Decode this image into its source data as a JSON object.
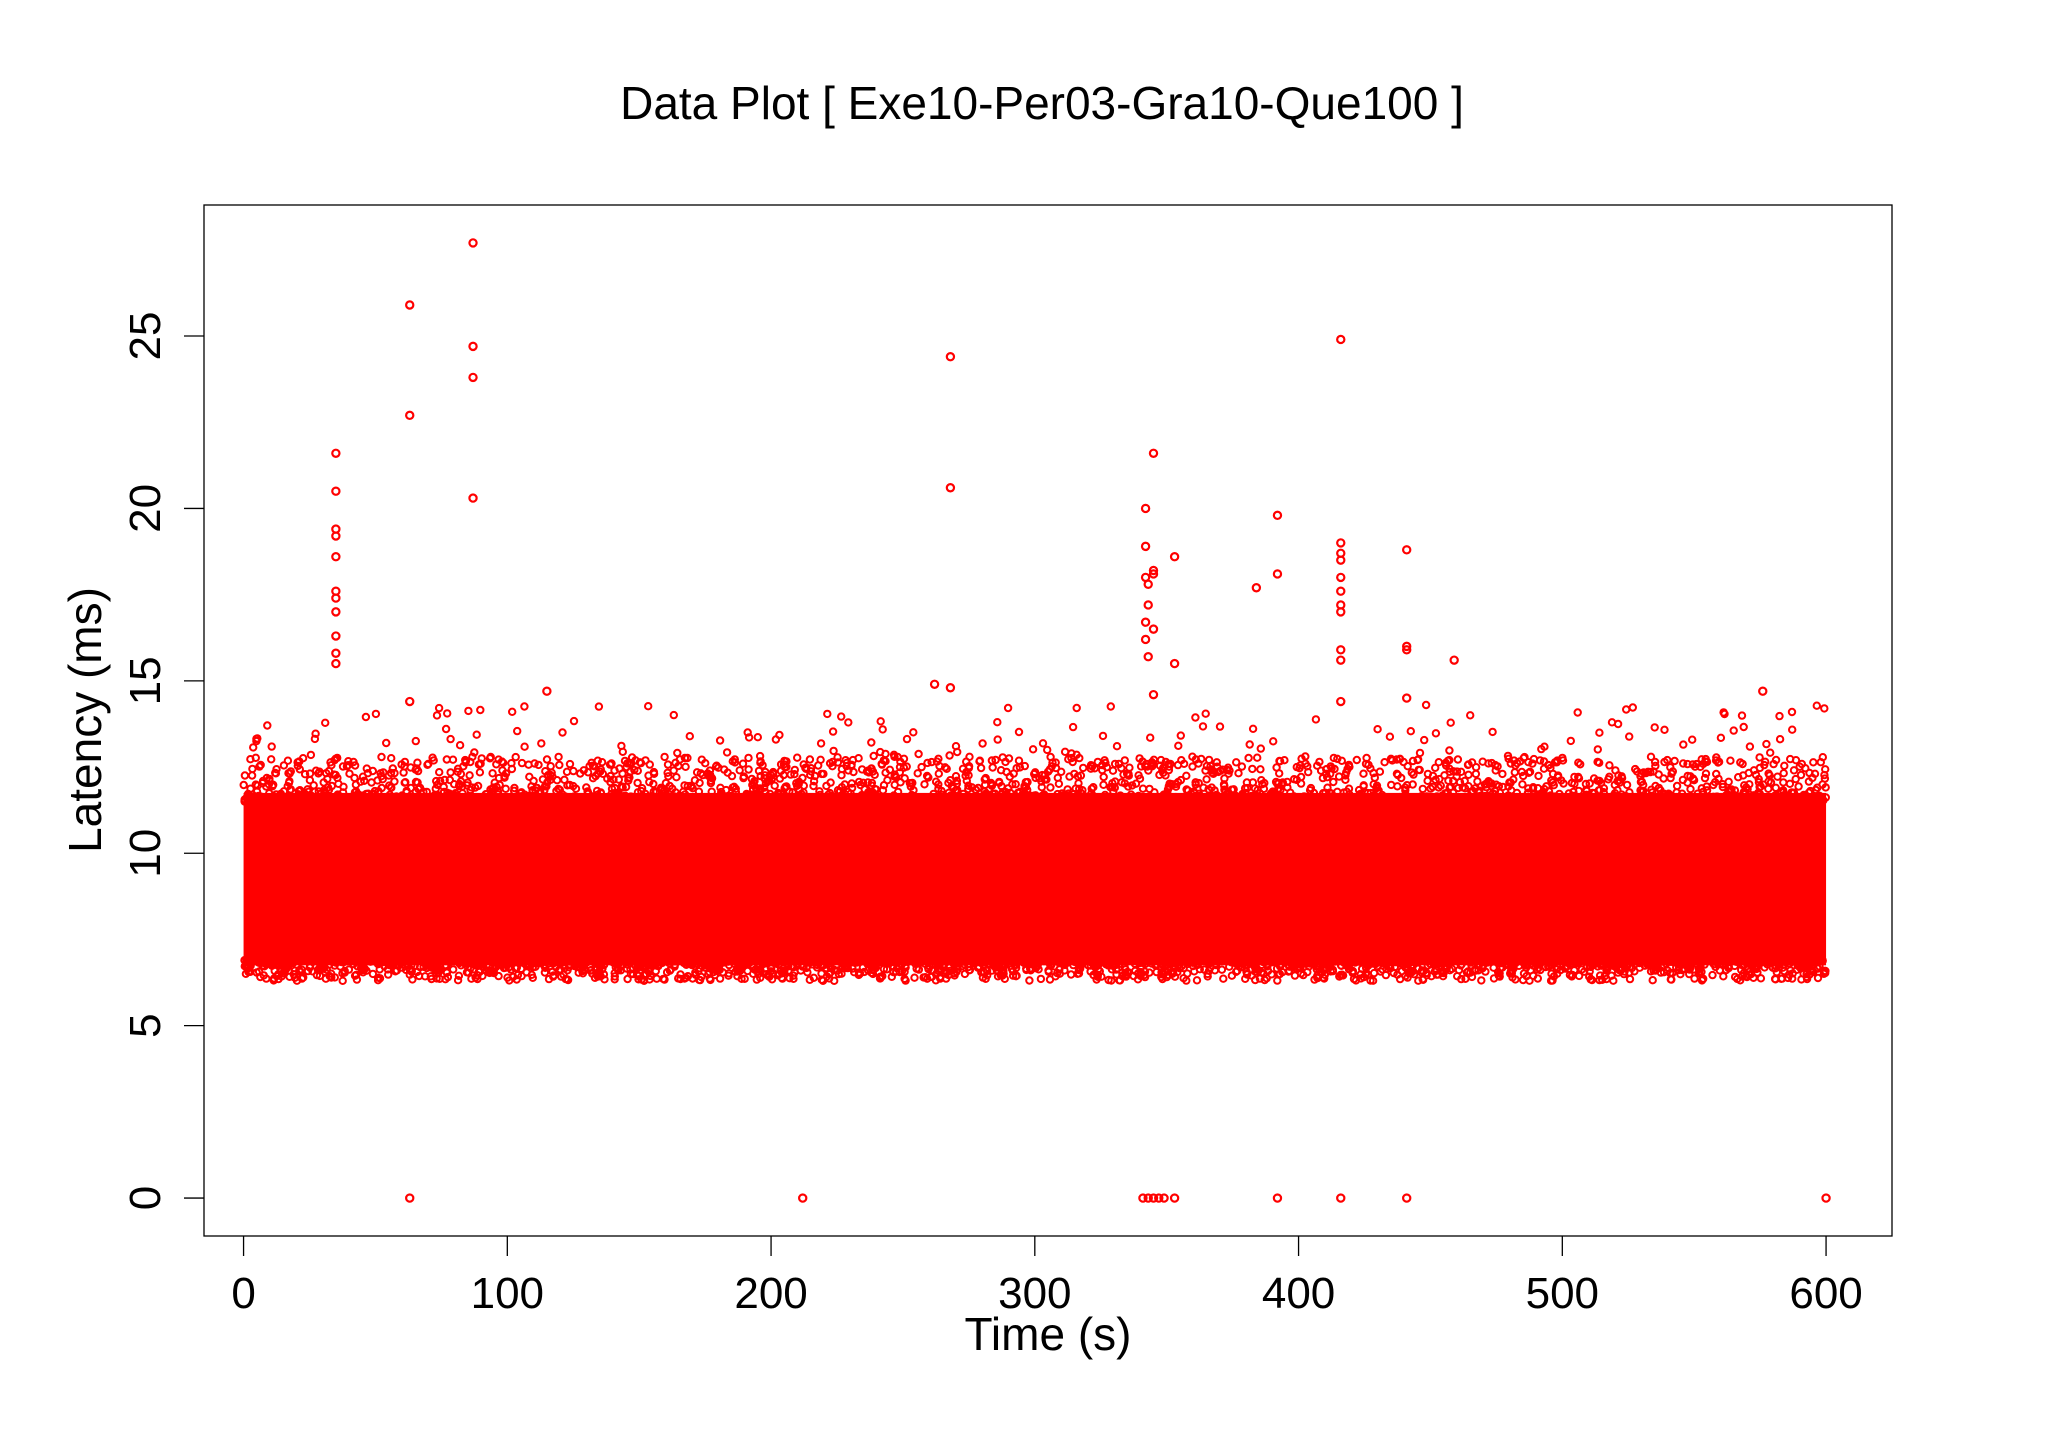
{
  "chart_data": {
    "type": "scatter",
    "title": "Data Plot [ Exe10-Per03-Gra10-Que100 ]",
    "xlabel": "Time (s)",
    "ylabel": "Latency (ms)",
    "xlim": [
      -15,
      625
    ],
    "ylim": [
      -1.1,
      28.8
    ],
    "xticks": [
      0,
      100,
      200,
      300,
      400,
      500,
      600
    ],
    "yticks": [
      0,
      5,
      10,
      15,
      20,
      25
    ],
    "grid": false,
    "legend": "none",
    "marker": "open-circle",
    "color": "#ff0000",
    "band": {
      "description_range_x": [
        0,
        600
      ],
      "typical_low": 6.6,
      "typical_high": 11.9,
      "approx_point_count": 60000
    },
    "series": [
      {
        "values_note": "outliers",
        "points": [
          [
            35,
            21.6
          ],
          [
            35,
            20.5
          ],
          [
            35,
            19.4
          ],
          [
            35,
            19.2
          ],
          [
            35,
            18.6
          ],
          [
            35,
            17.6
          ],
          [
            35,
            17.4
          ],
          [
            35,
            17.0
          ],
          [
            35,
            16.3
          ],
          [
            35,
            15.8
          ],
          [
            35,
            15.5
          ],
          [
            63,
            25.9
          ],
          [
            63,
            22.7
          ],
          [
            63,
            14.4
          ],
          [
            63,
            0.0
          ],
          [
            87,
            27.7
          ],
          [
            87,
            24.7
          ],
          [
            87,
            23.8
          ],
          [
            87,
            20.3
          ],
          [
            115,
            14.7
          ],
          [
            212,
            0.0
          ],
          [
            262,
            14.9
          ],
          [
            268,
            14.8
          ],
          [
            268,
            24.4
          ],
          [
            268,
            20.6
          ],
          [
            342,
            20.0
          ],
          [
            342,
            18.9
          ],
          [
            342,
            18.0
          ],
          [
            343,
            17.8
          ],
          [
            343,
            17.2
          ],
          [
            342,
            16.7
          ],
          [
            342,
            16.2
          ],
          [
            343,
            15.7
          ],
          [
            345,
            21.6
          ],
          [
            345,
            18.2
          ],
          [
            345,
            18.1
          ],
          [
            345,
            16.5
          ],
          [
            345,
            14.6
          ],
          [
            353,
            18.6
          ],
          [
            353,
            15.5
          ],
          [
            341,
            0.0
          ],
          [
            343,
            0.0
          ],
          [
            345,
            0.0
          ],
          [
            347,
            0.0
          ],
          [
            349,
            0.0
          ],
          [
            353,
            0.0
          ],
          [
            384,
            17.7
          ],
          [
            392,
            19.8
          ],
          [
            392,
            18.1
          ],
          [
            392,
            0.0
          ],
          [
            416,
            24.9
          ],
          [
            416,
            19.0
          ],
          [
            416,
            18.7
          ],
          [
            416,
            18.5
          ],
          [
            416,
            18.0
          ],
          [
            416,
            17.6
          ],
          [
            416,
            17.2
          ],
          [
            416,
            17.0
          ],
          [
            416,
            15.9
          ],
          [
            416,
            15.6
          ],
          [
            416,
            14.4
          ],
          [
            416,
            0.0
          ],
          [
            441,
            18.8
          ],
          [
            441,
            16.0
          ],
          [
            441,
            15.9
          ],
          [
            441,
            14.5
          ],
          [
            441,
            0.0
          ],
          [
            459,
            15.6
          ],
          [
            576,
            14.7
          ],
          [
            600,
            0.0
          ]
        ]
      }
    ]
  }
}
